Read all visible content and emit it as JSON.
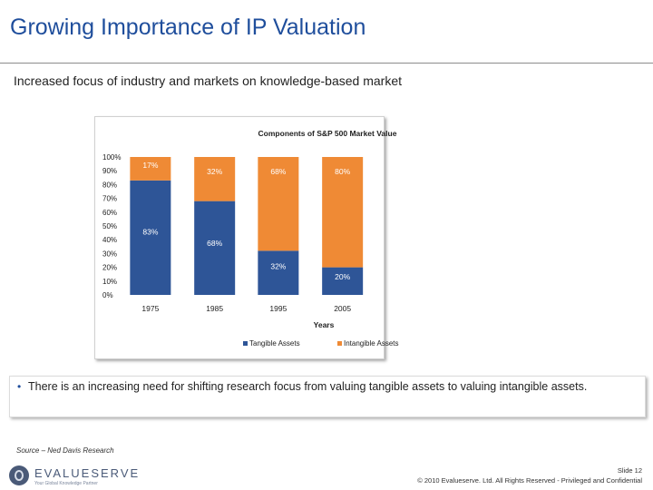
{
  "slide": {
    "title": "Growing Importance of IP Valuation",
    "subtitle": "Increased focus of industry and markets on knowledge-based market",
    "note": "There is an increasing need for shifting research focus from valuing tangible assets to valuing intangible assets.",
    "source": "Source – Ned Davis Research",
    "slide_number": "Slide 12",
    "copyright": "© 2010 Evalueserve. Ltd. All Rights Reserved - Privileged and Confidential",
    "logo_text": "EVALUESERVE",
    "logo_tagline": "Your Global Knowledge Partner"
  },
  "colors": {
    "tangible": "#2e5597",
    "intangible": "#ef8a35",
    "title": "#1f4e9c"
  },
  "chart_data": {
    "type": "bar",
    "stacked": true,
    "title": "Components of S&P 500 Market Value",
    "xlabel": "Years",
    "ylabel": "",
    "categories": [
      "1975",
      "1985",
      "1995",
      "2005"
    ],
    "ylim": [
      0,
      100
    ],
    "yticks": [
      "0%",
      "10%",
      "20%",
      "30%",
      "40%",
      "50%",
      "60%",
      "70%",
      "80%",
      "90%",
      "100%"
    ],
    "series": [
      {
        "name": "Tangible Assets",
        "values": [
          83,
          68,
          32,
          20
        ],
        "labels": [
          "83%",
          "68%",
          "32%",
          "20%"
        ]
      },
      {
        "name": "Intangible Assets",
        "values": [
          17,
          32,
          68,
          80
        ],
        "labels": [
          "17%",
          "32%",
          "68%",
          "80%"
        ]
      }
    ],
    "legend_position": "bottom",
    "grid": false
  }
}
